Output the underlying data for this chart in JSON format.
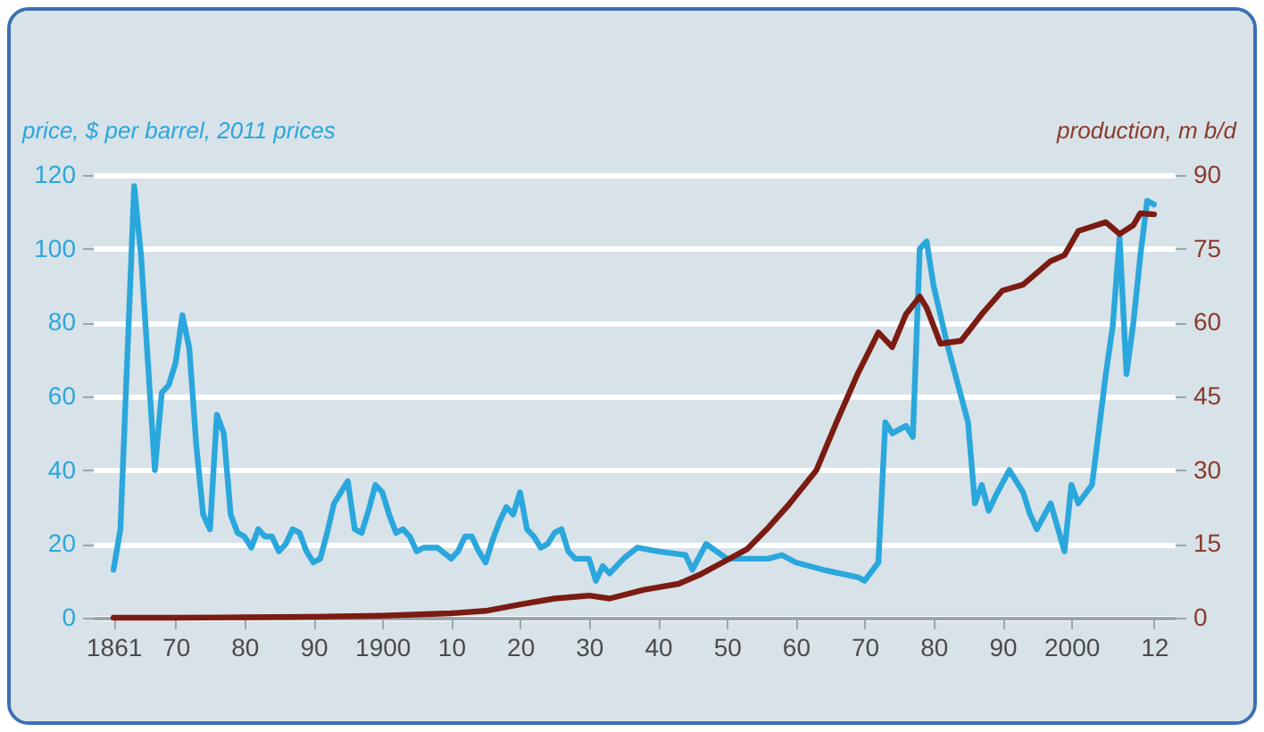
{
  "chart_data": {
    "type": "line",
    "ylabel": "price, $ per barrel, 2011 prices",
    "y2label": "production, m b/d",
    "xlim": [
      1858,
      2015
    ],
    "xticks": [
      {
        "value": 1861,
        "label": "1861"
      },
      {
        "value": 1870,
        "label": "70"
      },
      {
        "value": 1880,
        "label": "80"
      },
      {
        "value": 1890,
        "label": "90"
      },
      {
        "value": 1900,
        "label": "1900"
      },
      {
        "value": 1910,
        "label": "10"
      },
      {
        "value": 1920,
        "label": "20"
      },
      {
        "value": 1930,
        "label": "30"
      },
      {
        "value": 1940,
        "label": "40"
      },
      {
        "value": 1950,
        "label": "50"
      },
      {
        "value": 1960,
        "label": "60"
      },
      {
        "value": 1970,
        "label": "70"
      },
      {
        "value": 1980,
        "label": "80"
      },
      {
        "value": 1990,
        "label": "90"
      },
      {
        "value": 2000,
        "label": "2000"
      },
      {
        "value": 2012,
        "label": "12"
      }
    ],
    "ylim": [
      0,
      120
    ],
    "yticks": [
      0,
      20,
      40,
      60,
      80,
      100,
      120
    ],
    "y2lim": [
      0,
      90
    ],
    "y2ticks": [
      0,
      15,
      30,
      45,
      60,
      75,
      90
    ],
    "grid": "y",
    "line_style": "solid",
    "marker": "none",
    "series": [
      {
        "color": "#2aa7dc",
        "x": [
          1861,
          1862,
          1864,
          1865,
          1866,
          1867,
          1868,
          1869,
          1870,
          1871,
          1872,
          1873,
          1874,
          1875,
          1876,
          1877,
          1878,
          1879,
          1880,
          1881,
          1882,
          1883,
          1884,
          1885,
          1886,
          1887,
          1888,
          1889,
          1890,
          1891,
          1892,
          1893,
          1895,
          1896,
          1897,
          1898,
          1899,
          1900,
          1901,
          1902,
          1903,
          1904,
          1905,
          1906,
          1908,
          1910,
          1911,
          1912,
          1913,
          1914,
          1915,
          1916,
          1917,
          1918,
          1919,
          1920,
          1921,
          1922,
          1923,
          1924,
          1925,
          1926,
          1927,
          1928,
          1930,
          1931,
          1932,
          1933,
          1935,
          1937,
          1940,
          1944,
          1945,
          1947,
          1950,
          1953,
          1956,
          1958,
          1960,
          1964,
          1969,
          1970,
          1972,
          1973,
          1974,
          1976,
          1977,
          1978,
          1979,
          1980,
          1982,
          1984,
          1985,
          1986,
          1987,
          1988,
          1989,
          1991,
          1993,
          1994,
          1995,
          1997,
          1999,
          2000,
          2001,
          2003,
          2005,
          2006,
          2007,
          2008,
          2009,
          2010,
          2011,
          2012
        ],
        "values": [
          13,
          24,
          117,
          98,
          69,
          40,
          61,
          63,
          69,
          82,
          73,
          47,
          28,
          24,
          55,
          50,
          28,
          23,
          22,
          19,
          24,
          22,
          22,
          18,
          20,
          24,
          23,
          18,
          15,
          16,
          23,
          31,
          37,
          24,
          23,
          29,
          36,
          34,
          28,
          23,
          24,
          22,
          18,
          19,
          19,
          16,
          18,
          22,
          22,
          18,
          15,
          21,
          26,
          30,
          28,
          34,
          24,
          22,
          19,
          20,
          23,
          24,
          18,
          16,
          16,
          10,
          14,
          12,
          16,
          19,
          18,
          17,
          13,
          20,
          16,
          16,
          16,
          17,
          15,
          13,
          11,
          10,
          15,
          53,
          50,
          52,
          49,
          100,
          102,
          90,
          74,
          60,
          53,
          31,
          36,
          29,
          33,
          40,
          34,
          28,
          24,
          31,
          18,
          36,
          31,
          36,
          66,
          79,
          103,
          66,
          80,
          98,
          113,
          112
        ]
      },
      {
        "color": "#7b1c12",
        "axis": "y2",
        "x": [
          1861,
          1870,
          1880,
          1890,
          1900,
          1910,
          1915,
          1920,
          1925,
          1930,
          1933,
          1938,
          1943,
          1946,
          1950,
          1953,
          1956,
          1959,
          1963,
          1966,
          1969,
          1972,
          1974,
          1976,
          1978,
          1979,
          1981,
          1984,
          1987,
          1990,
          1993,
          1997,
          1999,
          2001,
          2005,
          2007,
          2009,
          2010,
          2012
        ],
        "values": [
          0,
          0,
          0.1,
          0.2,
          0.4,
          0.9,
          1.4,
          2.7,
          3.9,
          4.5,
          3.9,
          5.7,
          6.9,
          8.7,
          11.7,
          14,
          18.3,
          23,
          30,
          40,
          49.6,
          58,
          55,
          61.7,
          65.3,
          63,
          55.7,
          56.3,
          61.7,
          66.5,
          67.7,
          72.5,
          73.7,
          78.6,
          80.4,
          78,
          79.8,
          82.2,
          82
        ]
      }
    ]
  }
}
